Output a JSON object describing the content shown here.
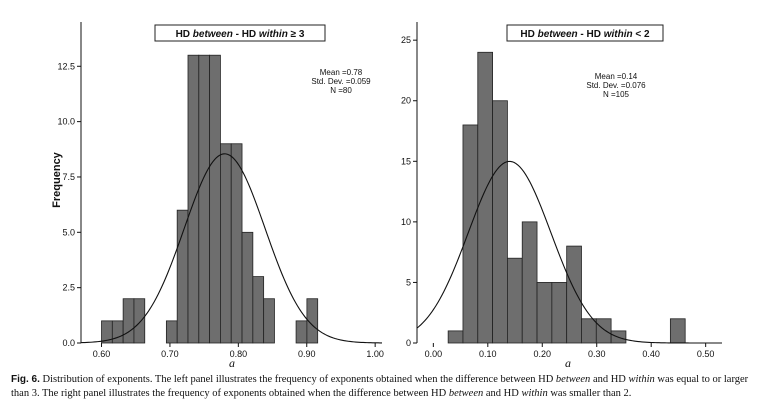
{
  "chart_data": [
    {
      "type": "bar",
      "title_parts": [
        "HD ",
        "between",
        " - HD ",
        "within",
        " ≥ 3"
      ],
      "xlabel": "a",
      "ylabel": "Frequency",
      "xlim": [
        0.57,
        1.01
      ],
      "ylim": [
        0,
        14.5
      ],
      "xticks": [
        "0.60",
        "0.70",
        "0.80",
        "0.90",
        "1.00"
      ],
      "xtick_values": [
        0.6,
        0.7,
        0.8,
        0.9,
        1.0
      ],
      "yticks": [
        "0.0",
        "2.5",
        "5.0",
        "7.5",
        "10.0",
        "12.5"
      ],
      "ytick_values": [
        0,
        2.5,
        5,
        7.5,
        10,
        12.5
      ],
      "bin_width": 0.0158,
      "bin_starts": [
        0.6,
        0.6158,
        0.6316,
        0.6474,
        0.6632,
        0.679,
        0.6948,
        0.7106,
        0.7264,
        0.7422,
        0.758,
        0.7738,
        0.7896,
        0.8054,
        0.8212,
        0.837,
        0.8528,
        0.8686,
        0.8844,
        0.9002,
        0.916
      ],
      "values": [
        1,
        1,
        2,
        2,
        0,
        0,
        1,
        6,
        13,
        13,
        13,
        9,
        9,
        5,
        3,
        2,
        0,
        0,
        1,
        2,
        0
      ],
      "stats": [
        "Mean =0.78",
        "Std. Dev. =0.059",
        "N =80"
      ],
      "normal_curve": {
        "mean": 0.78,
        "sd": 0.059,
        "n": 80
      }
    },
    {
      "type": "bar",
      "title_parts": [
        "HD ",
        "between",
        " - HD ",
        "within",
        " < 2"
      ],
      "xlabel": "a",
      "ylabel": "",
      "xlim": [
        -0.03,
        0.53
      ],
      "ylim": [
        0,
        26.5
      ],
      "xticks": [
        "0.00",
        "0.10",
        "0.20",
        "0.30",
        "0.40",
        "0.50"
      ],
      "xtick_values": [
        0,
        0.1,
        0.2,
        0.3,
        0.4,
        0.5
      ],
      "yticks": [
        "0",
        "5",
        "10",
        "15",
        "20",
        "25"
      ],
      "ytick_values": [
        0,
        5,
        10,
        15,
        20,
        25
      ],
      "bin_width": 0.0272,
      "bin_starts": [
        0.0272,
        0.0544,
        0.0816,
        0.1088,
        0.136,
        0.1632,
        0.1904,
        0.2176,
        0.2448,
        0.272,
        0.2992,
        0.3264,
        0.3536,
        0.3808,
        0.408,
        0.4352
      ],
      "values": [
        1,
        18,
        24,
        20,
        7,
        10,
        5,
        5,
        8,
        2,
        2,
        1,
        0,
        0,
        0,
        2
      ],
      "stats": [
        "Mean =0.14",
        "Std. Dev. =0.076",
        "N =105"
      ],
      "normal_curve": {
        "mean": 0.14,
        "sd": 0.076,
        "n": 105
      }
    }
  ],
  "caption": {
    "label": "Fig. 6.",
    "parts": [
      "  Distribution of exponents. The left panel illustrates the frequency of exponents obtained when the difference between HD ",
      "between",
      " and HD ",
      "within",
      " was equal to or larger than 3. The right panel illustrates the frequency of exponents obtained when the difference between HD ",
      "between",
      " and HD ",
      "within",
      " was smaller than 2."
    ]
  }
}
